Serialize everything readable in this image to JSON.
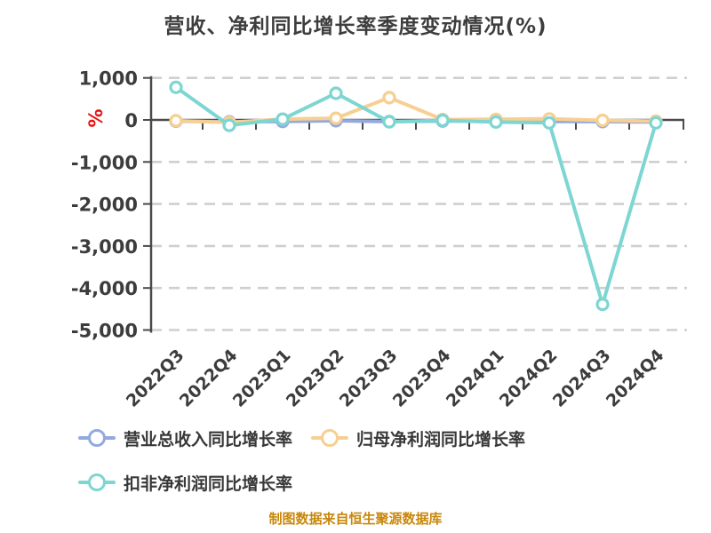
{
  "chart_data": {
    "type": "line",
    "title": "营收、净利同比增长率季度变动情况(%)",
    "ylabel": "%",
    "xlabel": "",
    "ylim": [
      -5000,
      1000
    ],
    "grid": "horizontal dashed gridlines, solid dark line at zero",
    "legend_position": "bottom-left, two rows",
    "categories": [
      "2022Q3",
      "2022Q4",
      "2023Q1",
      "2023Q2",
      "2023Q3",
      "2023Q4",
      "2024Q1",
      "2024Q2",
      "2024Q3",
      "2024Q4"
    ],
    "y_ticks": [
      {
        "value": 1000,
        "label": "1,000"
      },
      {
        "value": 0,
        "label": "0"
      },
      {
        "value": -1000,
        "label": "-1,000"
      },
      {
        "value": -2000,
        "label": "-2,000"
      },
      {
        "value": -3000,
        "label": "-3,000"
      },
      {
        "value": -4000,
        "label": "-4,000"
      },
      {
        "value": -5000,
        "label": "-5,000"
      }
    ],
    "series": [
      {
        "name": "营业总收入同比增长率",
        "color": "#93a9df",
        "values": [
          -30,
          -45,
          -35,
          -20,
          -40,
          -25,
          -30,
          -35,
          -40,
          -50
        ]
      },
      {
        "name": "归母净利润同比增长率",
        "color": "#f7cf92",
        "values": [
          -20,
          -60,
          20,
          40,
          530,
          10,
          15,
          25,
          -10,
          -30
        ]
      },
      {
        "name": "扣非净利润同比增长率",
        "color": "#7dd6d2",
        "values": [
          775,
          -130,
          20,
          635,
          -45,
          -10,
          -50,
          -70,
          -4390,
          -70
        ]
      }
    ]
  },
  "footer": {
    "source_text": "制图数据来自恒生聚源数据库"
  },
  "colors": {
    "title": "#3d3d3d",
    "axis": "#4a4a4a",
    "gridline": "#cfcfcf",
    "tick_label": "#3c3c3c",
    "y_unit_percent": "#e81414",
    "footer_text": "#c8870b",
    "background": "#ffffff"
  }
}
